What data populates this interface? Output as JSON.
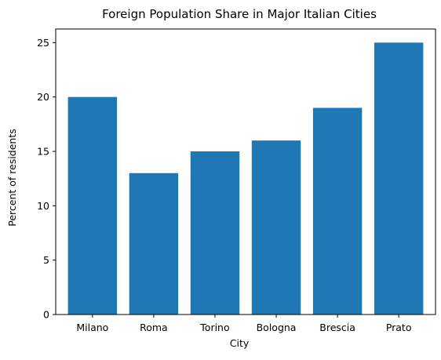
{
  "chart_data": {
    "type": "bar",
    "title": "Foreign Population Share in Major Italian Cities",
    "xlabel": "City",
    "ylabel": "Percent of residents",
    "categories": [
      "Milano",
      "Roma",
      "Torino",
      "Bologna",
      "Brescia",
      "Prato"
    ],
    "values": [
      20,
      13,
      15,
      16,
      19,
      25
    ],
    "ylim": [
      0,
      26.25
    ],
    "yticks": [
      0,
      5,
      10,
      15,
      20,
      25
    ],
    "bar_color": "#1f77b4",
    "grid": false,
    "legend": false
  }
}
